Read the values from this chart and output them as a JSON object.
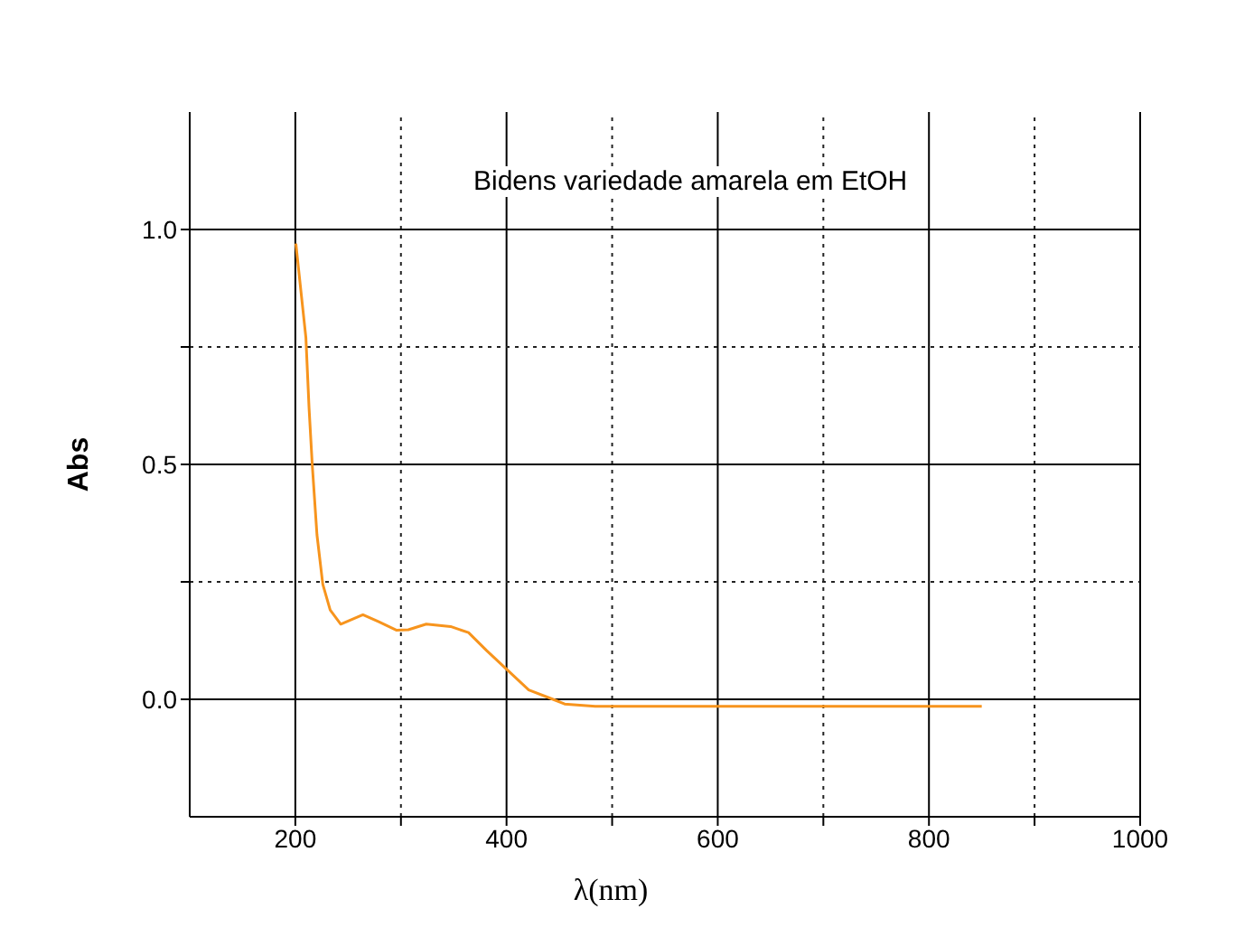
{
  "chart_data": {
    "type": "line",
    "title": "Bidens variedade amarela em EtOH",
    "xlabel": "λ(nm)",
    "ylabel": "Abs",
    "series": [
      {
        "color": "#f7941d",
        "x": [
          200.5,
          210,
          213,
          216,
          220.5,
          226,
          233,
          243,
          264,
          279,
          296,
          307,
          324,
          347,
          364,
          381,
          399.5,
          421,
          444,
          455,
          484,
          518,
          850
        ],
        "values": [
          0.97,
          0.77,
          0.62,
          0.5,
          0.35,
          0.245,
          0.19,
          0.16,
          0.18,
          0.165,
          0.147,
          0.148,
          0.16,
          0.155,
          0.142,
          0.104,
          0.065,
          0.02,
          0.0,
          -0.01,
          -0.015,
          -0.015,
          -0.015
        ]
      }
    ],
    "xlim": [
      100,
      1000
    ],
    "xticks": [
      200,
      {
        "value": 300,
        "label": null
      },
      400,
      {
        "value": 500,
        "label": null
      },
      600,
      {
        "value": 700,
        "label": null
      },
      800,
      {
        "value": 900,
        "label": null
      },
      1000
    ],
    "ylim": [
      -0.25,
      1.25
    ],
    "yticks": [
      {
        "value": 0,
        "label": "0.0"
      },
      {
        "value": 0.25,
        "label": null
      },
      {
        "value": 0.5,
        "label": "0.5"
      },
      {
        "value": 0.75,
        "label": null
      },
      {
        "value": 1,
        "label": "1.0"
      }
    ],
    "grid": true,
    "marker": "none"
  }
}
